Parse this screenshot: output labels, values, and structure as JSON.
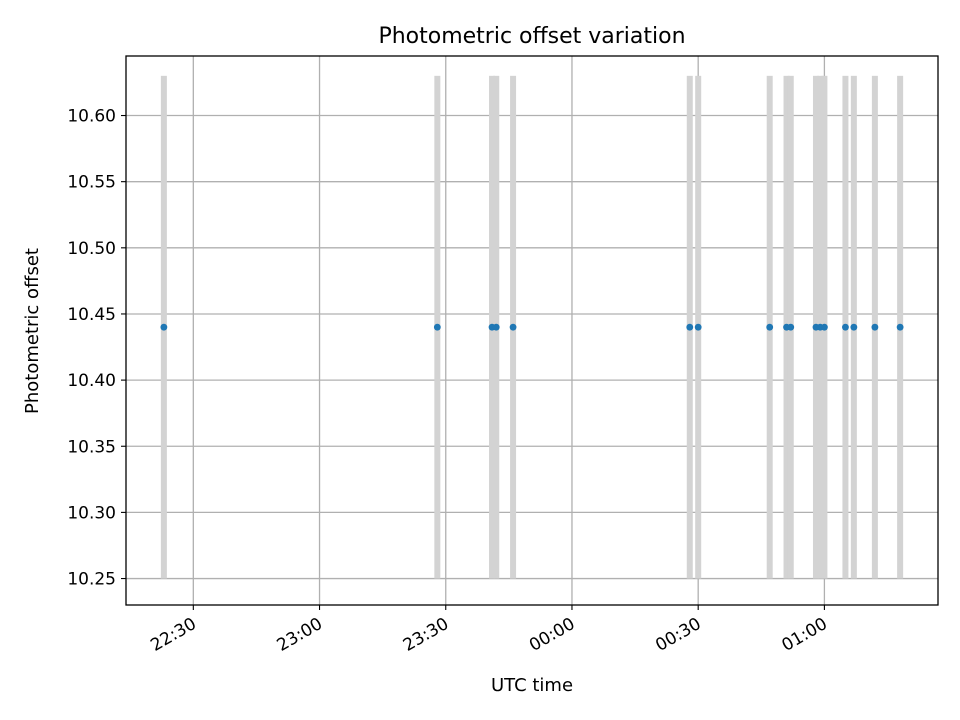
{
  "chart_data": {
    "type": "scatter",
    "title": "Photometric offset variation",
    "xlabel": "UTC time",
    "ylabel": "Photometric offset",
    "x_axis_kind": "time",
    "xlim": [
      "22:14",
      "01:27"
    ],
    "ylim": [
      10.23,
      10.645
    ],
    "x_ticks": [
      {
        "time": "22:30",
        "label": "22:30"
      },
      {
        "time": "23:00",
        "label": "23:00"
      },
      {
        "time": "23:30",
        "label": "23:30"
      },
      {
        "time": "00:00",
        "label": "00:00"
      },
      {
        "time": "00:30",
        "label": "00:30"
      },
      {
        "time": "01:00",
        "label": "01:00"
      }
    ],
    "y_ticks": [
      {
        "value": 10.25,
        "label": "10.25"
      },
      {
        "value": 10.3,
        "label": "10.30"
      },
      {
        "value": 10.35,
        "label": "10.35"
      },
      {
        "value": 10.4,
        "label": "10.40"
      },
      {
        "value": 10.45,
        "label": "10.45"
      },
      {
        "value": 10.5,
        "label": "10.50"
      },
      {
        "value": 10.55,
        "label": "10.55"
      },
      {
        "value": 10.6,
        "label": "10.60"
      }
    ],
    "grid": true,
    "x_tick_rotation": "30 degrees",
    "band_range": [
      10.25,
      10.63
    ],
    "bands_color": "#d3d3d3",
    "points_color": "#1f77b4",
    "points": [
      {
        "time": "22:23",
        "y": 10.44
      },
      {
        "time": "23:28",
        "y": 10.44
      },
      {
        "time": "23:41",
        "y": 10.44
      },
      {
        "time": "23:42",
        "y": 10.44
      },
      {
        "time": "23:46",
        "y": 10.44
      },
      {
        "time": "00:28",
        "y": 10.44
      },
      {
        "time": "00:30",
        "y": 10.44
      },
      {
        "time": "00:47",
        "y": 10.44
      },
      {
        "time": "00:51",
        "y": 10.44
      },
      {
        "time": "00:52",
        "y": 10.44
      },
      {
        "time": "00:58",
        "y": 10.44
      },
      {
        "time": "00:59",
        "y": 10.44
      },
      {
        "time": "01:00",
        "y": 10.44
      },
      {
        "time": "01:05",
        "y": 10.44
      },
      {
        "time": "01:07",
        "y": 10.44
      },
      {
        "time": "01:12",
        "y": 10.44
      },
      {
        "time": "01:18",
        "y": 10.44
      }
    ],
    "bands": [
      {
        "time": "22:23"
      },
      {
        "time": "23:28"
      },
      {
        "time": "23:41"
      },
      {
        "time": "23:42"
      },
      {
        "time": "23:46"
      },
      {
        "time": "00:28"
      },
      {
        "time": "00:30"
      },
      {
        "time": "00:47"
      },
      {
        "time": "00:51"
      },
      {
        "time": "00:52"
      },
      {
        "time": "00:58"
      },
      {
        "time": "00:59"
      },
      {
        "time": "01:00"
      },
      {
        "time": "01:05"
      },
      {
        "time": "01:07"
      },
      {
        "time": "01:12"
      },
      {
        "time": "01:18"
      }
    ]
  }
}
